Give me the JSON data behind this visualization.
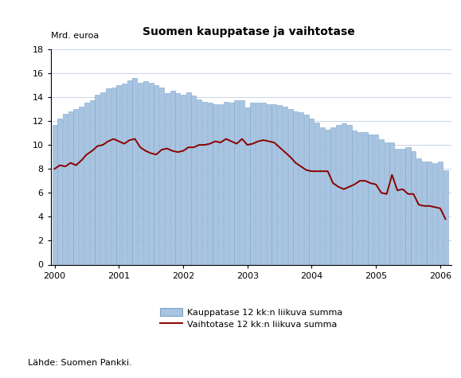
{
  "title": "Suomen kauppatase ja vaihtotase",
  "ylabel": "Mrd. euroa",
  "source": "Lähde: Suomen Pankki.",
  "legend_bar": "Kauppatase 12 kk:n liikuva summa",
  "legend_line": "Vaihtotase 12 kk:n liikuva summa",
  "ylim": [
    0,
    18
  ],
  "yticks": [
    0,
    2,
    4,
    6,
    8,
    10,
    12,
    14,
    16,
    18
  ],
  "bar_color": "#a8c4e0",
  "bar_edge_color": "#7aa4cc",
  "line_color": "#8b0000",
  "bar_values": [
    11.7,
    12.2,
    12.6,
    12.8,
    13.0,
    13.2,
    13.5,
    13.7,
    14.2,
    14.4,
    14.7,
    14.8,
    15.0,
    15.1,
    15.4,
    15.6,
    15.2,
    15.3,
    15.2,
    15.0,
    14.8,
    14.3,
    14.5,
    14.3,
    14.2,
    14.4,
    14.1,
    13.8,
    13.6,
    13.5,
    13.4,
    13.4,
    13.6,
    13.5,
    13.7,
    13.7,
    13.1,
    13.5,
    13.5,
    13.5,
    13.4,
    13.4,
    13.3,
    13.2,
    13.0,
    12.8,
    12.7,
    12.5,
    12.2,
    11.9,
    11.5,
    11.3,
    11.5,
    11.7,
    11.8,
    11.7,
    11.2,
    11.1,
    11.1,
    10.9,
    10.9,
    10.5,
    10.2,
    10.2,
    9.7,
    9.7,
    9.8,
    9.5,
    8.9,
    8.6,
    8.6,
    8.5,
    8.6,
    7.9
  ],
  "line_values": [
    8.0,
    8.3,
    8.2,
    8.5,
    8.3,
    8.7,
    9.2,
    9.5,
    9.9,
    10.0,
    10.3,
    10.5,
    10.3,
    10.1,
    10.4,
    10.5,
    9.8,
    9.5,
    9.3,
    9.2,
    9.6,
    9.7,
    9.5,
    9.4,
    9.5,
    9.8,
    9.8,
    10.0,
    10.0,
    10.1,
    10.3,
    10.2,
    10.5,
    10.3,
    10.1,
    10.5,
    10.0,
    10.1,
    10.3,
    10.4,
    10.3,
    10.2,
    9.8,
    9.4,
    9.0,
    8.5,
    8.2,
    7.9,
    7.8,
    7.8,
    7.8,
    7.8,
    6.8,
    6.5,
    6.3,
    6.5,
    6.7,
    7.0,
    7.0,
    6.8,
    6.7,
    6.0,
    5.9,
    7.5,
    6.2,
    6.3,
    5.9,
    5.9,
    5.0,
    4.9,
    4.9,
    4.8,
    4.7,
    3.8
  ],
  "n_months": 74,
  "start_year": 2000,
  "xtick_years": [
    2000,
    2001,
    2002,
    2003,
    2004,
    2005,
    2006
  ],
  "background_color": "#ffffff",
  "grid_color": "#c8d4e8"
}
